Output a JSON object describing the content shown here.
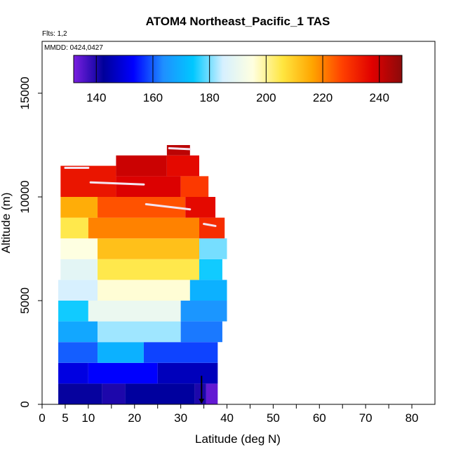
{
  "chart_data": {
    "type": "heatmap",
    "title": "ATOM4 Northeast_Pacific_1 TAS",
    "flights_note": "Flts: 1,2",
    "date_note": "MMDD: 0424,0427",
    "xlabel": "Latitude (deg N)",
    "ylabel": "Altitude (m)",
    "xlim": [
      0,
      85
    ],
    "ylim": [
      0,
      17500
    ],
    "x_ticks": [
      0,
      5,
      10,
      20,
      30,
      40,
      50,
      60,
      70,
      80
    ],
    "x_minor_ticks": [
      15,
      25,
      35,
      45,
      55,
      65,
      75
    ],
    "y_ticks": [
      0,
      5000,
      10000,
      15000
    ],
    "colorbar": {
      "min": 132,
      "max": 248,
      "ticks": [
        140,
        160,
        180,
        200,
        220,
        240
      ],
      "colors": [
        "#7a1fe0",
        "#00009a",
        "#0000ff",
        "#1f8fff",
        "#00c8ff",
        "#d6f0ff",
        "#ffffe0",
        "#ffe640",
        "#ffa500",
        "#ff4000",
        "#e00000",
        "#8b0a0a"
      ]
    },
    "values": [
      {
        "x0": 3.5,
        "x1": 13,
        "y0": 0,
        "y1": 1000,
        "v": 142
      },
      {
        "x0": 13,
        "x1": 18,
        "y0": 0,
        "y1": 1000,
        "v": 140
      },
      {
        "x0": 18,
        "x1": 33,
        "y0": 0,
        "y1": 1000,
        "v": 143
      },
      {
        "x0": 33,
        "x1": 35.5,
        "y0": 0,
        "y1": 1000,
        "v": 140
      },
      {
        "x0": 35.5,
        "x1": 38,
        "y0": 0,
        "y1": 1000,
        "v": 134
      },
      {
        "x0": 3.5,
        "x1": 10,
        "y0": 1000,
        "y1": 2000,
        "v": 150
      },
      {
        "x0": 10,
        "x1": 25,
        "y0": 1000,
        "y1": 2000,
        "v": 153
      },
      {
        "x0": 25,
        "x1": 38,
        "y0": 1000,
        "y1": 2000,
        "v": 146
      },
      {
        "x0": 3.5,
        "x1": 12,
        "y0": 2000,
        "y1": 3000,
        "v": 160
      },
      {
        "x0": 12,
        "x1": 22,
        "y0": 2000,
        "y1": 3000,
        "v": 170
      },
      {
        "x0": 22,
        "x1": 38,
        "y0": 2000,
        "y1": 3000,
        "v": 158
      },
      {
        "x0": 3.5,
        "x1": 12,
        "y0": 3000,
        "y1": 4000,
        "v": 168
      },
      {
        "x0": 12,
        "x1": 30,
        "y0": 3000,
        "y1": 4000,
        "v": 182
      },
      {
        "x0": 30,
        "x1": 39,
        "y0": 3000,
        "y1": 4000,
        "v": 162
      },
      {
        "x0": 3.5,
        "x1": 10,
        "y0": 4000,
        "y1": 5000,
        "v": 175
      },
      {
        "x0": 10,
        "x1": 30,
        "y0": 4000,
        "y1": 5000,
        "v": 190
      },
      {
        "x0": 30,
        "x1": 40,
        "y0": 4000,
        "y1": 5000,
        "v": 165
      },
      {
        "x0": 3.5,
        "x1": 12,
        "y0": 5000,
        "y1": 6000,
        "v": 185
      },
      {
        "x0": 12,
        "x1": 32,
        "y0": 5000,
        "y1": 6000,
        "v": 196
      },
      {
        "x0": 32,
        "x1": 40,
        "y0": 5000,
        "y1": 6000,
        "v": 170
      },
      {
        "x0": 4,
        "x1": 12,
        "y0": 6000,
        "y1": 7000,
        "v": 188
      },
      {
        "x0": 12,
        "x1": 34,
        "y0": 6000,
        "y1": 7000,
        "v": 205
      },
      {
        "x0": 34,
        "x1": 39,
        "y0": 6000,
        "y1": 7000,
        "v": 175
      },
      {
        "x0": 4,
        "x1": 12,
        "y0": 7000,
        "y1": 8000,
        "v": 195
      },
      {
        "x0": 12,
        "x1": 34,
        "y0": 7000,
        "y1": 8000,
        "v": 212
      },
      {
        "x0": 34,
        "x1": 40,
        "y0": 7000,
        "y1": 8000,
        "v": 180
      },
      {
        "x0": 4,
        "x1": 10,
        "y0": 8000,
        "y1": 9000,
        "v": 205
      },
      {
        "x0": 10,
        "x1": 34,
        "y0": 8000,
        "y1": 9000,
        "v": 220
      },
      {
        "x0": 34,
        "x1": 39.5,
        "y0": 8000,
        "y1": 9000,
        "v": 230
      },
      {
        "x0": 4,
        "x1": 12,
        "y0": 9000,
        "y1": 10000,
        "v": 215
      },
      {
        "x0": 12,
        "x1": 31,
        "y0": 9000,
        "y1": 10000,
        "v": 225
      },
      {
        "x0": 31,
        "x1": 37.5,
        "y0": 9000,
        "y1": 10000,
        "v": 236
      },
      {
        "x0": 4,
        "x1": 16,
        "y0": 10000,
        "y1": 11500,
        "v": 234
      },
      {
        "x0": 16,
        "x1": 30,
        "y0": 10000,
        "y1": 11000,
        "v": 238
      },
      {
        "x0": 30,
        "x1": 36,
        "y0": 10000,
        "y1": 11000,
        "v": 228
      },
      {
        "x0": 16,
        "x1": 27,
        "y0": 11000,
        "y1": 12000,
        "v": 240
      },
      {
        "x0": 27,
        "x1": 34,
        "y0": 11000,
        "y1": 12000,
        "v": 236
      },
      {
        "x0": 27,
        "x1": 32,
        "y0": 12000,
        "y1": 12500,
        "v": 242
      }
    ],
    "flight_tracks": [
      [
        [
          5,
          11400
        ],
        [
          10,
          11400
        ]
      ],
      [
        [
          10.5,
          10700
        ],
        [
          22,
          10600
        ]
      ],
      [
        [
          22.5,
          9650
        ],
        [
          32,
          9400
        ]
      ],
      [
        [
          27.5,
          12350
        ],
        [
          32,
          12300
        ]
      ],
      [
        [
          35,
          8700
        ],
        [
          37.5,
          8600
        ]
      ]
    ],
    "sonde_marker": {
      "x": 34.5,
      "y": 700
    }
  }
}
